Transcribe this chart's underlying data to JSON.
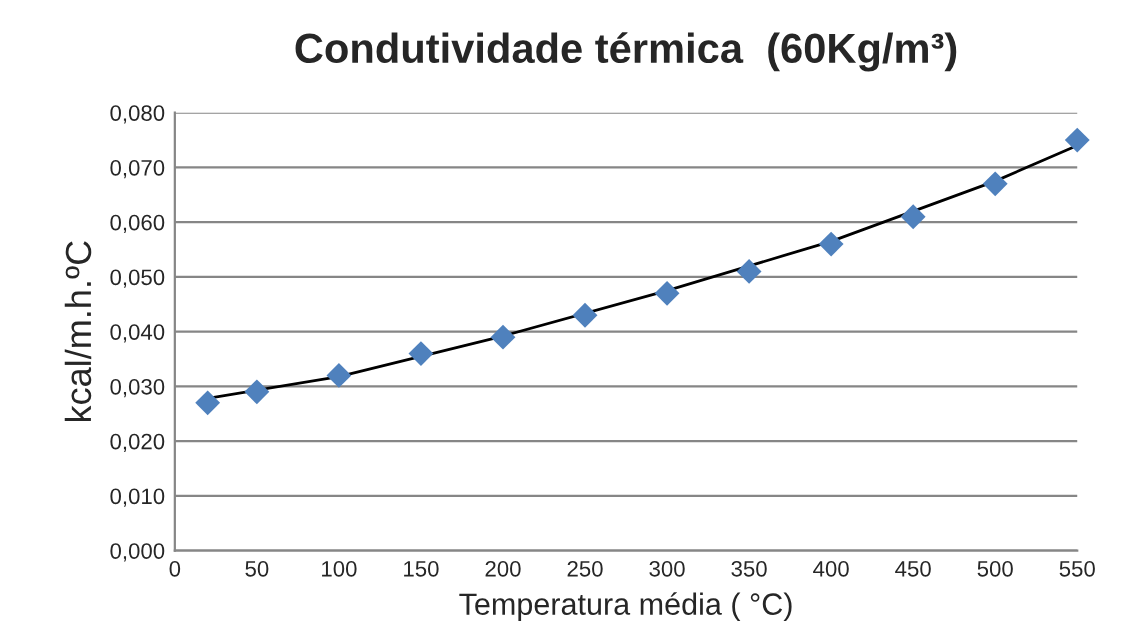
{
  "chart_data": {
    "type": "scatter",
    "title": "Condutividade térmica  (60Kg/m³)",
    "xlabel": "Temperatura média ( °C)",
    "ylabel": "kcal/m.h.ºC",
    "x": [
      20,
      50,
      100,
      150,
      200,
      250,
      300,
      350,
      400,
      450,
      500,
      550
    ],
    "series": [
      {
        "color": "#4f81bd",
        "marker": "diamond",
        "values": [
          0.027,
          0.029,
          0.032,
          0.036,
          0.039,
          0.043,
          0.047,
          0.051,
          0.056,
          0.061,
          0.067,
          0.075
        ]
      },
      {
        "type": "line",
        "color": "#000000",
        "marker": "none",
        "line_style": "solid",
        "x": [
          20,
          100,
          200,
          300,
          400,
          500,
          550
        ],
        "values": [
          0.0278,
          0.0318,
          0.0392,
          0.0475,
          0.0565,
          0.0675,
          0.074
        ]
      }
    ],
    "xlim": [
      0,
      550
    ],
    "xticks": [
      0,
      50,
      100,
      150,
      200,
      250,
      300,
      350,
      400,
      450,
      500,
      550
    ],
    "ylim": [
      0,
      0.08
    ],
    "yticks": [
      {
        "value": 0,
        "label": "0,000"
      },
      {
        "value": 0.01,
        "label": "0,010"
      },
      {
        "value": 0.02,
        "label": "0,020"
      },
      {
        "value": 0.03,
        "label": "0,030"
      },
      {
        "value": 0.04,
        "label": "0,040"
      },
      {
        "value": 0.05,
        "label": "0,050"
      },
      {
        "value": 0.06,
        "label": "0,060"
      },
      {
        "value": 0.07,
        "label": "0,070"
      },
      {
        "value": 0.08,
        "label": "0,080"
      }
    ],
    "grid": "y",
    "legend": false
  }
}
